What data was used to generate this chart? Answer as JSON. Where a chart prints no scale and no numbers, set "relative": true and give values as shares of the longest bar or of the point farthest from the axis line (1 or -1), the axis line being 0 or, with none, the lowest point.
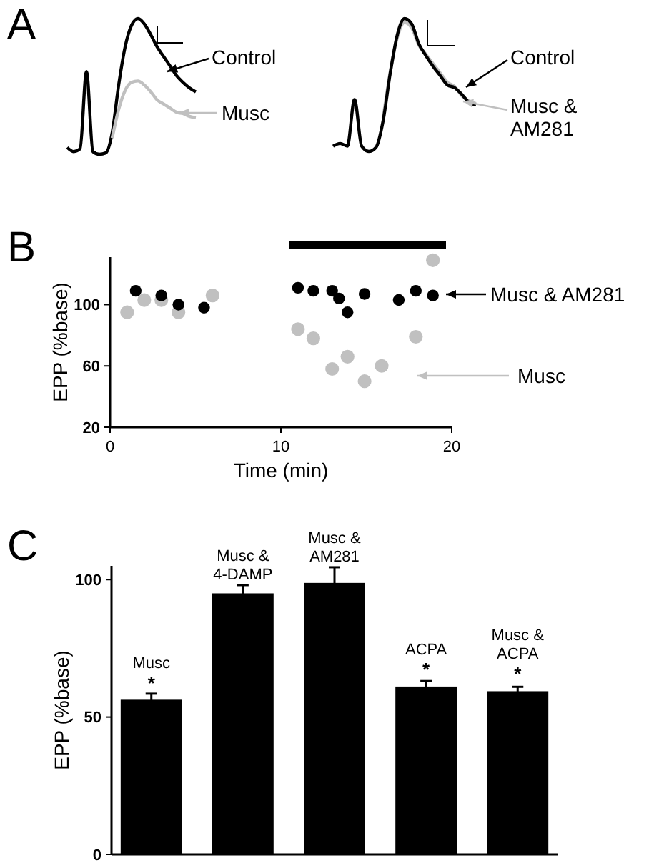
{
  "chart_data": [
    {
      "type": "line",
      "title": "A",
      "relative": true,
      "legend": "right",
      "categories": [
        null,
        null,
        null,
        null,
        null,
        null,
        null,
        null,
        null,
        null,
        null,
        null,
        null,
        null,
        null,
        null,
        null,
        null,
        null,
        null,
        null
      ],
      "series": [
        {
          "name": "Control",
          "color": "#000000",
          "values": [
            0.05,
            0.02,
            0.04,
            0.61,
            0.02,
            0,
            0.01,
            0.16,
            0.51,
            0.79,
            0.95,
            1,
            0.96,
            0.88,
            0.79,
            0.72,
            0.65,
            0.58,
            0.53,
            0.49,
            0.46
          ]
        },
        {
          "name": "Musc",
          "color": "#c0c0c0",
          "values": [
            null,
            null,
            null,
            null,
            null,
            null,
            null,
            0.12,
            0.33,
            0.47,
            0.53,
            0.54,
            0.51,
            0.46,
            0.4,
            0.37,
            0.34,
            0.31,
            0.3,
            0.28,
            0.27
          ]
        }
      ]
    },
    {
      "type": "line",
      "relative": true,
      "legend": "right",
      "categories": [
        null,
        null,
        null,
        null,
        null,
        null,
        null,
        null,
        null,
        null,
        null,
        null,
        null,
        null,
        null,
        null,
        null,
        null,
        null,
        null,
        null
      ],
      "series": [
        {
          "name": "Musc & AM281",
          "color": "#c0c0c0",
          "values": [
            null,
            null,
            null,
            null,
            null,
            null,
            null,
            0.25,
            0.6,
            0.86,
            0.97,
            0.93,
            0.8,
            0.73,
            0.66,
            0.59,
            0.52,
            0.49,
            0.42,
            0.38,
            0.36
          ]
        },
        {
          "name": "Control",
          "color": "#000000",
          "values": [
            0.04,
            0.06,
            0.04,
            0.39,
            0.04,
            0,
            0.03,
            0.23,
            0.59,
            0.88,
            1,
            0.96,
            0.81,
            0.72,
            0.64,
            0.57,
            0.5,
            0.48,
            0.43,
            0.37,
            0.35
          ]
        }
      ]
    },
    {
      "type": "scatter",
      "title": "B",
      "xlabel": "Time (min)",
      "ylabel": "EPP (%base)",
      "xlim": [
        0,
        20
      ],
      "ylim": [
        20,
        131
      ],
      "xticks": [
        0,
        10,
        20
      ],
      "yticks": [
        20,
        60,
        100
      ],
      "marker": "circle",
      "legend": "right",
      "series": [
        {
          "name": "Musc",
          "color": "#c0c0c0",
          "x": [
            1.0,
            2.0,
            3.0,
            4.0,
            6.0,
            11.0,
            11.9,
            13.0,
            13.9,
            14.9,
            15.9,
            17.9,
            18.9
          ],
          "values": [
            95,
            103,
            103,
            95,
            106,
            84,
            78,
            58,
            66,
            50,
            60,
            79,
            129
          ]
        },
        {
          "name": "Musc & AM281",
          "color": "#000000",
          "x": [
            1.5,
            3.0,
            4.0,
            5.5,
            11.0,
            11.9,
            13.0,
            13.4,
            13.9,
            14.9,
            16.9,
            17.9,
            18.9
          ],
          "values": [
            109,
            106,
            100,
            98,
            111,
            109,
            109,
            104,
            95,
            107,
            103,
            109,
            106
          ]
        }
      ]
    },
    {
      "type": "bar",
      "title": "C",
      "ylabel": "EPP (%base)",
      "ylim": [
        0,
        105
      ],
      "yticks": [
        0,
        50,
        100
      ],
      "color": "#000000",
      "categories": [
        "Musc",
        "Musc & 4-DAMP",
        "Musc & AM281",
        "ACPA",
        "Musc & ACPA"
      ],
      "values": [
        56.3,
        95.0,
        98.8,
        61.1,
        59.4
      ],
      "errors": [
        2.2,
        3,
        5.7,
        2,
        1.6
      ],
      "annotations": [
        {
          "text": "*",
          "x": "Musc",
          "y": 60
        },
        {
          "text": "*",
          "x": "ACPA",
          "y": 65
        },
        {
          "text": "*",
          "x": "Musc & ACPA",
          "y": 63.5
        }
      ]
    }
  ]
}
